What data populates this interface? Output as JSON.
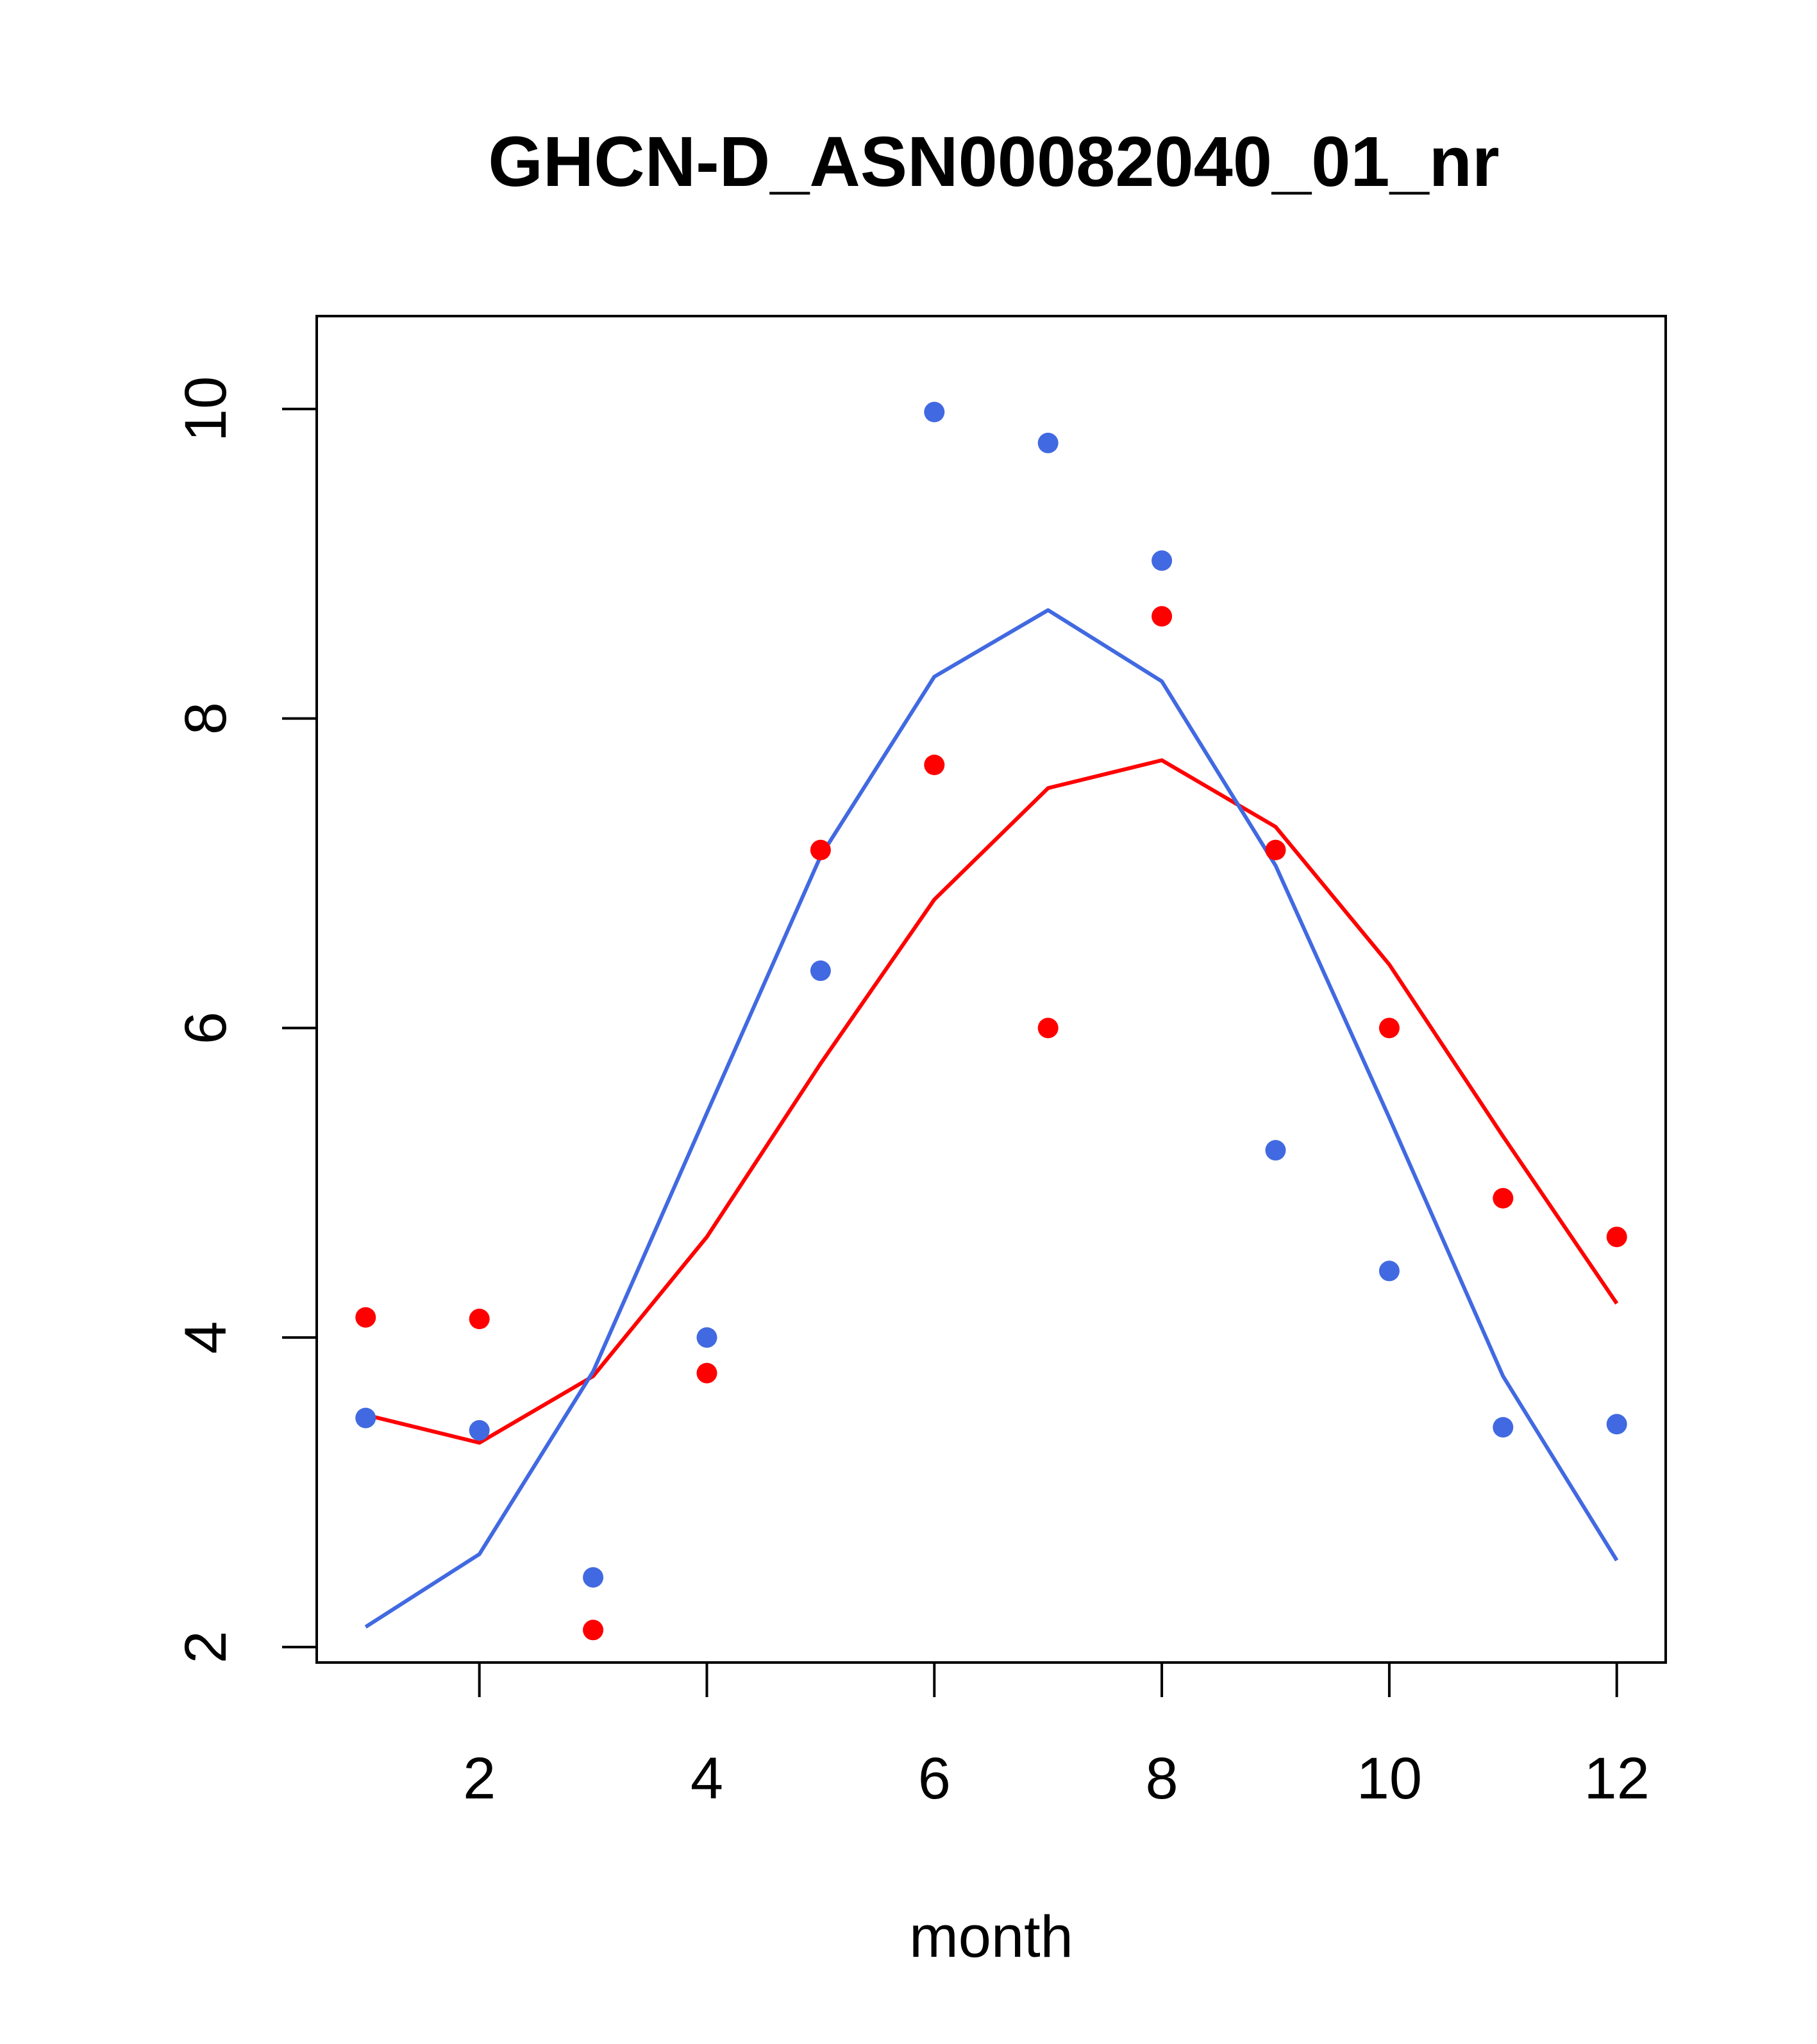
{
  "chart_data": {
    "type": "scatter",
    "title": "GHCN-D_ASN00082040_01_nr",
    "xlabel": "month",
    "ylabel": "",
    "xlim": [
      0.57,
      12.43
    ],
    "ylim": [
      1.9,
      10.6
    ],
    "x_ticks": [
      2,
      4,
      6,
      8,
      10,
      12
    ],
    "y_ticks": [
      2,
      4,
      6,
      8,
      10
    ],
    "grid": false,
    "legend": "none",
    "series": [
      {
        "color": "#ff0000",
        "kind": "points",
        "x": [
          1,
          2,
          3,
          4,
          5,
          6,
          7,
          8,
          9,
          10,
          11,
          12
        ],
        "values": [
          4.13,
          4.12,
          2.11,
          3.77,
          7.15,
          7.7,
          6.0,
          8.66,
          7.15,
          6.0,
          4.9,
          4.65
        ]
      },
      {
        "color": "#4169e1",
        "kind": "points",
        "x": [
          1,
          2,
          3,
          4,
          5,
          6,
          7,
          8,
          9,
          10,
          11,
          12
        ],
        "values": [
          3.48,
          3.4,
          2.45,
          4.0,
          6.37,
          9.98,
          9.78,
          9.02,
          5.21,
          4.43,
          3.42,
          3.44
        ]
      },
      {
        "color": "#ff0000",
        "kind": "line",
        "x": [
          1,
          2,
          3,
          4,
          5,
          6,
          7,
          8,
          9,
          10,
          11,
          12
        ],
        "values": [
          3.5,
          3.32,
          3.75,
          4.65,
          5.77,
          6.83,
          7.55,
          7.73,
          7.3,
          6.41,
          5.3,
          4.22
        ]
      },
      {
        "color": "#4169e1",
        "kind": "line",
        "x": [
          1,
          2,
          3,
          4,
          5,
          6,
          7,
          8,
          9,
          10,
          11,
          12
        ],
        "values": [
          2.13,
          2.6,
          3.78,
          5.45,
          7.11,
          8.27,
          8.7,
          8.24,
          7.05,
          5.42,
          3.75,
          2.56
        ]
      }
    ]
  }
}
